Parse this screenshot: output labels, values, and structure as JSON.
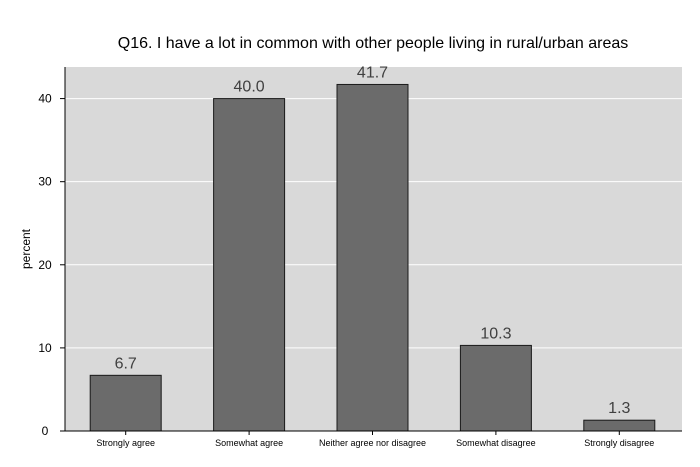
{
  "chart_data": {
    "type": "bar",
    "title": "Q16. I have a lot in common with other people living in rural/urban areas",
    "xlabel": "",
    "ylabel": "percent",
    "categories": [
      "Strongly agree",
      "Somewhat agree",
      "Neither agree nor disagree",
      "Somewhat disagree",
      "Strongly disagree"
    ],
    "values": [
      6.7,
      40.0,
      41.7,
      10.3,
      1.3
    ],
    "value_labels": [
      "6.7",
      "40.0",
      "41.7",
      "10.3",
      "1.3"
    ],
    "yticks": [
      0,
      10,
      20,
      30,
      40
    ],
    "ylim": [
      0,
      43.8
    ],
    "grid": true,
    "legend": "none",
    "colors": {
      "plot_background": "#d9d9d9",
      "bar_fill": "#6b6b6b",
      "bar_stroke": "#1a1a1a",
      "gridline": "#ffffff"
    }
  }
}
